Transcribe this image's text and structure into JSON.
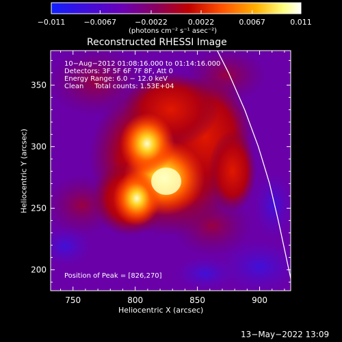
{
  "colorbar": {
    "tick_labels": [
      "−0.011",
      "−0.0067",
      "−0.0022",
      "0.0022",
      "0.0067",
      "0.011"
    ],
    "units_label": "(photons cm⁻² s⁻¹ asec⁻²)",
    "range": [
      -0.011,
      0.011
    ],
    "colors": [
      "#1020ff",
      "#3a10e0",
      "#6a00b8",
      "#8a0060",
      "#c00000",
      "#ff5000",
      "#ffb000",
      "#ffff80",
      "#ffffff"
    ]
  },
  "chart_data": {
    "type": "heatmap",
    "title": "Reconstructed RHESSI Image",
    "xlabel": "Heliocentric X (arcsec)",
    "ylabel": "Heliocentric Y (arcsec)",
    "xlim": [
      732,
      925
    ],
    "ylim": [
      183,
      378
    ],
    "x_ticks": [
      750,
      800,
      850,
      900
    ],
    "y_ticks": [
      200,
      250,
      300,
      350
    ],
    "peak_position": [
      826,
      270
    ],
    "limb_curve": [
      [
        866,
        378
      ],
      [
        875,
        360
      ],
      [
        888,
        330
      ],
      [
        899,
        300
      ],
      [
        908,
        270
      ],
      [
        915,
        240
      ],
      [
        921,
        212
      ],
      [
        925,
        193
      ]
    ],
    "info_lines": [
      "10−Aug−2012 01:08:16.000 to 01:14:16.000",
      "Detectors: 3F 5F 6F 7F 8F, Att 0",
      "Energy Range: 6.0 − 12.0 keV",
      "Clean     Total counts: 1.53E+04"
    ],
    "peak_label": "Position of Peak = [826,270]"
  },
  "timestamp": "13−May−2022 13:09"
}
